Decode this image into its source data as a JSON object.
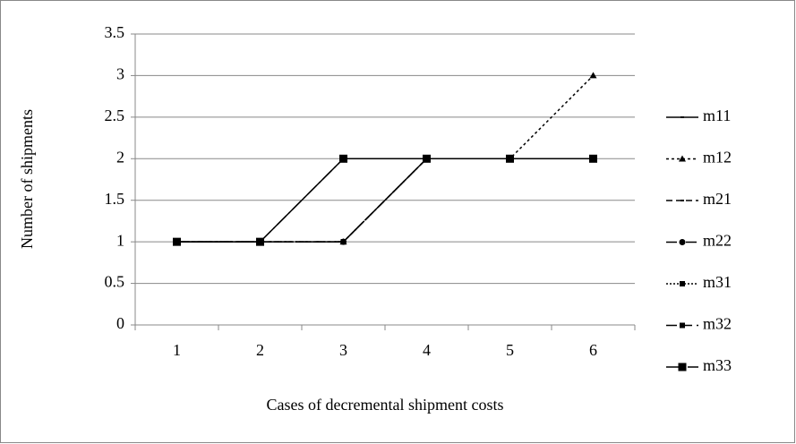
{
  "chart_data": {
    "type": "line",
    "xlabel": "Cases of decremental shipment costs",
    "ylabel": "Number of shipments",
    "categories": [
      "1",
      "2",
      "3",
      "4",
      "5",
      "6"
    ],
    "ylim": [
      0,
      3.5
    ],
    "yticks": [
      0,
      0.5,
      1,
      1.5,
      2,
      2.5,
      3,
      3.5
    ],
    "grid": true,
    "legend": "right",
    "series": [
      {
        "name": "m11",
        "color": "#000000",
        "dash": "none",
        "marker": "dash",
        "values": [
          1,
          1,
          2,
          2,
          2,
          2
        ]
      },
      {
        "name": "m12",
        "color": "#000000",
        "dash": "3,3",
        "marker": "triangle",
        "values": [
          1,
          1,
          1,
          2,
          2,
          3
        ]
      },
      {
        "name": "m21",
        "color": "#000000",
        "dash": "7,4",
        "marker": "dash",
        "values": [
          1,
          1,
          1,
          2,
          2,
          2
        ]
      },
      {
        "name": "m22",
        "color": "#000000",
        "dash": "12,4,2,4",
        "marker": "circle",
        "values": [
          1,
          1,
          1,
          2,
          2,
          2
        ]
      },
      {
        "name": "m31",
        "color": "#000000",
        "dash": "2,2",
        "marker": "square",
        "values": [
          1,
          1,
          1,
          2,
          2,
          2
        ]
      },
      {
        "name": "m32",
        "color": "#000000",
        "dash": "12,5",
        "marker": "square",
        "values": [
          1,
          1,
          1,
          2,
          2,
          2
        ]
      },
      {
        "name": "m33",
        "color": "#000000",
        "dash": "14,4,2,4",
        "marker": "square-large",
        "values": [
          1,
          1,
          2,
          2,
          2,
          2
        ]
      }
    ]
  }
}
